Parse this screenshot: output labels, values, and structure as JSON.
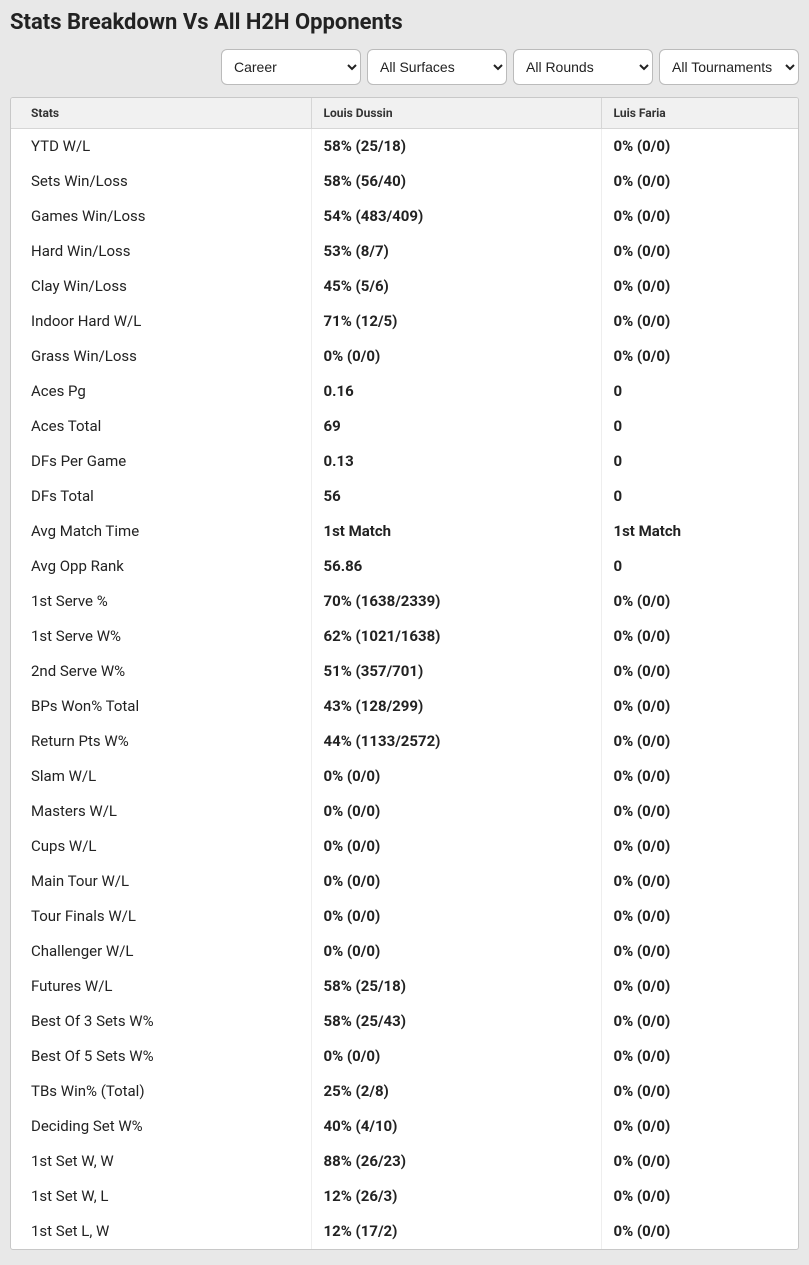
{
  "title": "Stats Breakdown Vs All H2H Opponents",
  "filters": {
    "period": {
      "selected": "Career"
    },
    "surface": {
      "selected": "All Surfaces"
    },
    "round": {
      "selected": "All Rounds"
    },
    "tournament": {
      "selected": "All Tournaments"
    }
  },
  "columns": {
    "stats": "Stats",
    "player1": "Louis Dussin",
    "player2": "Luis Faria"
  },
  "rows": [
    {
      "label": "YTD W/L",
      "p1": "58% (25/18)",
      "p2": "0% (0/0)"
    },
    {
      "label": "Sets Win/Loss",
      "p1": "58% (56/40)",
      "p2": "0% (0/0)"
    },
    {
      "label": "Games Win/Loss",
      "p1": "54% (483/409)",
      "p2": "0% (0/0)"
    },
    {
      "label": "Hard Win/Loss",
      "p1": "53% (8/7)",
      "p2": "0% (0/0)"
    },
    {
      "label": "Clay Win/Loss",
      "p1": "45% (5/6)",
      "p2": "0% (0/0)"
    },
    {
      "label": "Indoor Hard W/L",
      "p1": "71% (12/5)",
      "p2": "0% (0/0)"
    },
    {
      "label": "Grass Win/Loss",
      "p1": "0% (0/0)",
      "p2": "0% (0/0)"
    },
    {
      "label": "Aces Pg",
      "p1": "0.16",
      "p2": "0"
    },
    {
      "label": "Aces Total",
      "p1": "69",
      "p2": "0"
    },
    {
      "label": "DFs Per Game",
      "p1": "0.13",
      "p2": "0"
    },
    {
      "label": "DFs Total",
      "p1": "56",
      "p2": "0"
    },
    {
      "label": "Avg Match Time",
      "p1": "1st Match",
      "p2": "1st Match"
    },
    {
      "label": "Avg Opp Rank",
      "p1": "56.86",
      "p2": "0"
    },
    {
      "label": "1st Serve %",
      "p1": "70% (1638/2339)",
      "p2": "0% (0/0)"
    },
    {
      "label": "1st Serve W%",
      "p1": "62% (1021/1638)",
      "p2": "0% (0/0)"
    },
    {
      "label": "2nd Serve W%",
      "p1": "51% (357/701)",
      "p2": "0% (0/0)"
    },
    {
      "label": "BPs Won% Total",
      "p1": "43% (128/299)",
      "p2": "0% (0/0)"
    },
    {
      "label": "Return Pts W%",
      "p1": "44% (1133/2572)",
      "p2": "0% (0/0)"
    },
    {
      "label": "Slam W/L",
      "p1": "0% (0/0)",
      "p2": "0% (0/0)"
    },
    {
      "label": "Masters W/L",
      "p1": "0% (0/0)",
      "p2": "0% (0/0)"
    },
    {
      "label": "Cups W/L",
      "p1": "0% (0/0)",
      "p2": "0% (0/0)"
    },
    {
      "label": "Main Tour W/L",
      "p1": "0% (0/0)",
      "p2": "0% (0/0)"
    },
    {
      "label": "Tour Finals W/L",
      "p1": "0% (0/0)",
      "p2": "0% (0/0)"
    },
    {
      "label": "Challenger W/L",
      "p1": "0% (0/0)",
      "p2": "0% (0/0)"
    },
    {
      "label": "Futures W/L",
      "p1": "58% (25/18)",
      "p2": "0% (0/0)"
    },
    {
      "label": "Best Of 3 Sets W%",
      "p1": "58% (25/43)",
      "p2": "0% (0/0)"
    },
    {
      "label": "Best Of 5 Sets W%",
      "p1": "0% (0/0)",
      "p2": "0% (0/0)"
    },
    {
      "label": "TBs Win% (Total)",
      "p1": "25% (2/8)",
      "p2": "0% (0/0)"
    },
    {
      "label": "Deciding Set W%",
      "p1": "40% (4/10)",
      "p2": "0% (0/0)"
    },
    {
      "label": "1st Set W, W",
      "p1": "88% (26/23)",
      "p2": "0% (0/0)"
    },
    {
      "label": "1st Set W, L",
      "p1": "12% (26/3)",
      "p2": "0% (0/0)"
    },
    {
      "label": "1st Set L, W",
      "p1": "12% (17/2)",
      "p2": "0% (0/0)"
    }
  ]
}
